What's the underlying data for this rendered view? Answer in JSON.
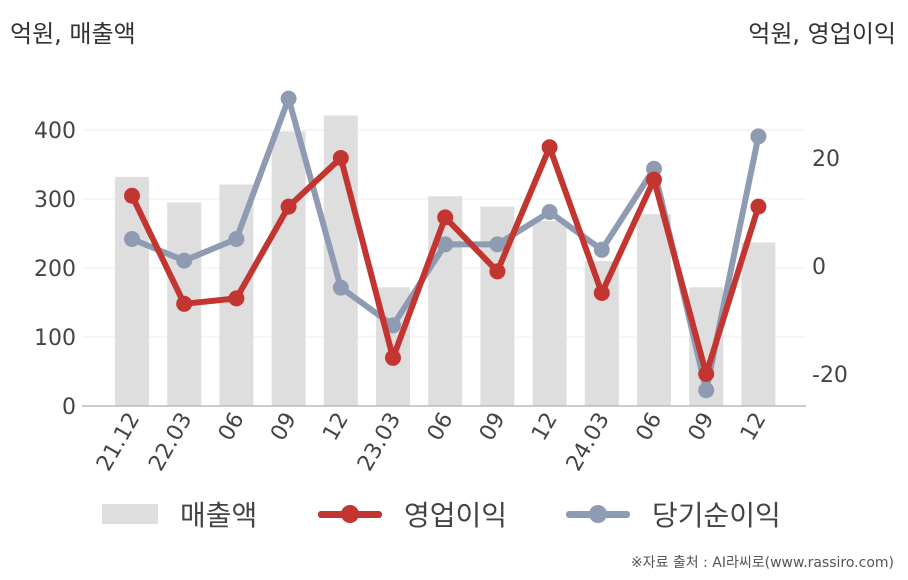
{
  "units": {
    "left": "억원, 매출액",
    "right": "억원, 영업이익"
  },
  "source": "※자료 출처 : AI라씨로(www.rassiro.com)",
  "chart_data": {
    "type": "bar+line",
    "categories": [
      "21.12",
      "22.03",
      "06",
      "09",
      "12",
      "23.03",
      "06",
      "09",
      "12",
      "24.03",
      "06",
      "09",
      "12"
    ],
    "series": [
      {
        "name": "매출액",
        "type": "bar",
        "axis": "left",
        "color": "#dedede",
        "values": [
          332,
          295,
          321,
          398,
          421,
          172,
          304,
          289,
          268,
          210,
          278,
          172,
          237
        ]
      },
      {
        "name": "영업이익",
        "type": "line",
        "axis": "right",
        "color": "#c23531",
        "values": [
          13,
          -7,
          -6,
          11,
          20,
          -17,
          9,
          -1,
          22,
          -5,
          16,
          -20,
          11
        ]
      },
      {
        "name": "당기순이익",
        "type": "line",
        "axis": "right",
        "color": "#8f9bb3",
        "values": [
          5,
          1,
          5,
          31,
          -4,
          -11,
          4,
          4,
          10,
          3,
          18,
          -23,
          24
        ]
      }
    ],
    "left_axis": {
      "min": 0,
      "max": 400,
      "ticks": [
        0,
        100,
        200,
        300,
        400
      ]
    },
    "right_axis": {
      "min": -20,
      "max": 20,
      "ticks": [
        -20,
        0,
        20
      ]
    },
    "grid": true,
    "legend_position": "bottom"
  }
}
